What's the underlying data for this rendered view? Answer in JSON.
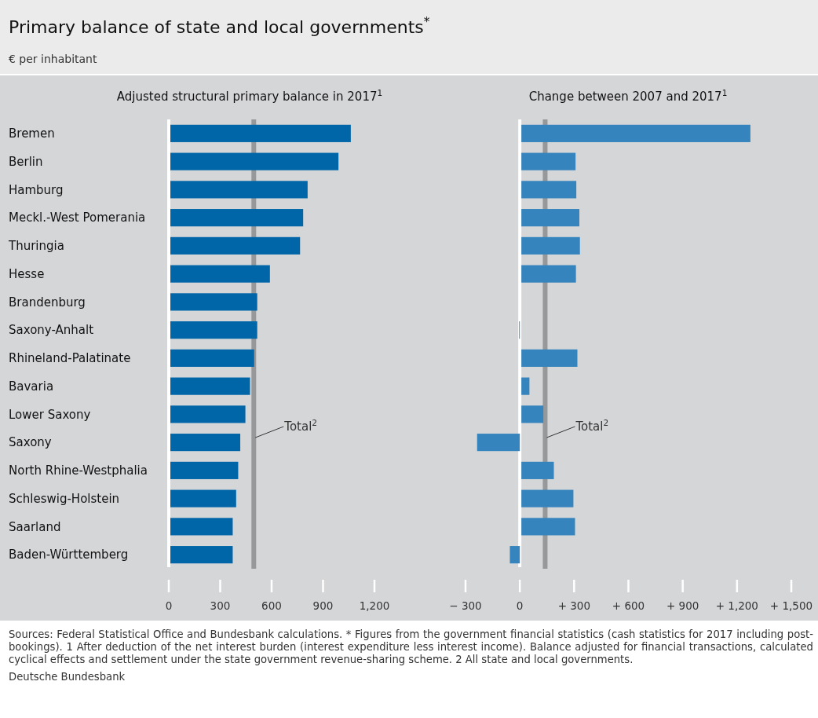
{
  "chart_data": [
    {
      "type": "bar",
      "orientation": "horizontal",
      "title": "Adjusted structural primary balance in 2017$^{1}$",
      "categories": [
        "Bremen",
        "Berlin",
        "Hamburg",
        "Meckl.-West Pomerania",
        "Thuringia",
        "Hesse",
        "Brandenburg",
        "Saxony-Anhalt",
        "Rhineland-Palatinate",
        "Bavaria",
        "Lower Saxony",
        "Saxony",
        "North Rhine-Westphalia",
        "Schleswig-Holstein",
        "Saarland",
        "Baden-Württemberg"
      ],
      "values": [
        1062,
        990,
        810,
        784,
        766,
        590,
        516,
        516,
        498,
        474,
        447,
        417,
        405,
        393,
        373,
        373
      ],
      "color": "#0066a8",
      "xlim": [
        0,
        1200
      ],
      "xticks": [
        0,
        300,
        600,
        900,
        {
          "value": 1200,
          "label": "1,200"
        }
      ],
      "ref_lines": [
        {
          "axis": "x",
          "value": 496,
          "label": "Total$^{2}$",
          "color": "#97989a"
        }
      ],
      "annotations": [
        "Primary balance of state and local governments$^{*}$",
        "€ per inhabitant",
        "Sources: Federal Statistical Office and Bundesbank calculations. * Figures from the government financial statistics (cash statistics for 2017 including post-bookings). 1 After deduction of the net interest burden (interest expenditure less interest income). Balance adjusted for financial transactions, calculated cyclical effects and settlement under the state government revenue-sharing scheme. 2 All state and local governments.",
        "Deutsche Bundesbank"
      ]
    },
    {
      "type": "bar",
      "orientation": "horizontal",
      "title": "Change between 2007 and 2017$^{1}$",
      "categories": [
        null,
        null,
        null,
        null,
        null,
        null,
        null,
        null,
        null,
        null,
        null,
        null,
        null,
        null,
        null,
        null
      ],
      "values": [
        1274,
        308,
        312,
        329,
        332,
        310,
        0,
        -4,
        318,
        53,
        130,
        -236,
        188,
        296,
        305,
        -55
      ],
      "color": "#3584bd",
      "xlim": [
        -300,
        1500
      ],
      "xticks": [
        {
          "value": -300,
          "label": "− 300"
        },
        0,
        {
          "value": 300,
          "label": "+ 300"
        },
        {
          "value": 600,
          "label": "+ 600"
        },
        {
          "value": 900,
          "label": "+ 900"
        },
        {
          "value": 1200,
          "label": "+ 1,200"
        },
        {
          "value": 1500,
          "label": "+ 1,500"
        }
      ],
      "ref_lines": [
        {
          "axis": "x",
          "value": 140,
          "label": "Total$^{2}$",
          "color": "#97989a"
        }
      ],
      "tick_labels": "x"
    }
  ]
}
